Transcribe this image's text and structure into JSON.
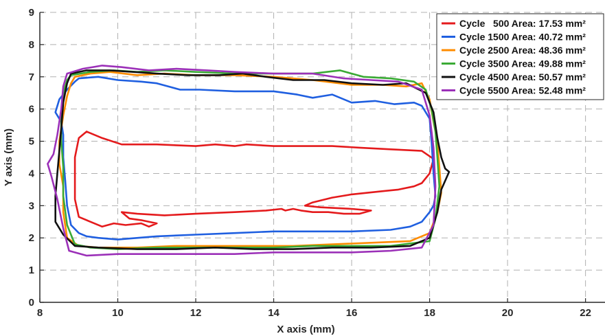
{
  "chart_data": {
    "type": "line",
    "xlabel": "X axis (mm)",
    "ylabel": "Y axis (mm)",
    "xlim": [
      8,
      22.5
    ],
    "ylim": [
      0,
      9
    ],
    "xticks": [
      8,
      10,
      12,
      14,
      16,
      18,
      20,
      22
    ],
    "yticks": [
      0,
      1,
      2,
      3,
      4,
      5,
      6,
      7,
      8,
      9
    ],
    "grid": true,
    "legend_position": "top-right",
    "series": [
      {
        "name": "Cycle   500 Area: 17.53 mm²",
        "color": "#e41a1c",
        "x": [
          9.2,
          9.6,
          10.1,
          11.0,
          12.0,
          12.5,
          13.0,
          13.3,
          14.0,
          14.8,
          15.5,
          16.2,
          17.0,
          17.8,
          18.1,
          18.0,
          17.8,
          17.6,
          17.2,
          16.8,
          16.4,
          16.0,
          15.5,
          15.0,
          14.8,
          15.2,
          16.0,
          16.5,
          16.2,
          15.8,
          15.4,
          15.0,
          14.7,
          14.5,
          14.3,
          14.2,
          13.8,
          13.0,
          12.0,
          11.2,
          10.5,
          10.1,
          10.3,
          10.6,
          11.0,
          10.8,
          10.6,
          10.2,
          9.9,
          9.6,
          9.3,
          9.0,
          8.9,
          8.9,
          9.0,
          9.2
        ],
        "y": [
          5.3,
          5.1,
          4.9,
          4.9,
          4.85,
          4.9,
          4.85,
          4.9,
          4.85,
          4.85,
          4.85,
          4.8,
          4.75,
          4.7,
          4.45,
          4.0,
          3.7,
          3.6,
          3.5,
          3.45,
          3.4,
          3.35,
          3.25,
          3.1,
          3.0,
          2.95,
          2.9,
          2.85,
          2.75,
          2.75,
          2.8,
          2.8,
          2.85,
          2.9,
          2.85,
          2.9,
          2.85,
          2.8,
          2.75,
          2.7,
          2.75,
          2.8,
          2.6,
          2.55,
          2.45,
          2.35,
          2.45,
          2.4,
          2.45,
          2.35,
          2.5,
          2.65,
          3.2,
          4.5,
          5.1,
          5.3
        ]
      },
      {
        "name": "Cycle 1500 Area: 40.72 mm²",
        "color": "#1f5fe0",
        "x": [
          9.0,
          9.5,
          10.0,
          10.6,
          11.0,
          11.6,
          12.1,
          13.0,
          14.0,
          14.6,
          15.0,
          15.5,
          16.0,
          16.6,
          17.1,
          17.6,
          17.8,
          18.0,
          18.05,
          18.1,
          18.15,
          18.1,
          18.0,
          17.8,
          17.5,
          17.0,
          16.0,
          15.0,
          14.0,
          13.0,
          12.0,
          11.0,
          10.0,
          9.5,
          9.2,
          9.0,
          8.8,
          8.7,
          8.65,
          8.6,
          8.6,
          8.55,
          8.4,
          8.5,
          8.7,
          8.9,
          9.0
        ],
        "y": [
          6.95,
          7.0,
          6.9,
          6.85,
          6.8,
          6.6,
          6.6,
          6.55,
          6.55,
          6.45,
          6.35,
          6.45,
          6.2,
          6.25,
          6.15,
          6.2,
          6.1,
          5.7,
          5.0,
          4.0,
          3.3,
          3.0,
          2.8,
          2.5,
          2.35,
          2.25,
          2.2,
          2.2,
          2.2,
          2.15,
          2.1,
          2.05,
          1.95,
          2.0,
          2.05,
          2.15,
          2.4,
          3.0,
          3.8,
          4.5,
          5.2,
          5.6,
          5.9,
          6.3,
          6.6,
          6.85,
          6.95
        ]
      },
      {
        "name": "Cycle 2500 Area: 48.36 mm²",
        "color": "#ff8c00",
        "x": [
          8.9,
          9.3,
          9.8,
          10.5,
          11.2,
          12.0,
          13.0,
          14.0,
          15.0,
          16.0,
          16.8,
          17.4,
          17.8,
          18.0,
          18.1,
          18.2,
          18.25,
          18.3,
          18.2,
          18.0,
          17.5,
          16.5,
          15.5,
          14.5,
          13.5,
          12.5,
          11.5,
          10.5,
          9.5,
          9.0,
          8.7,
          8.6,
          8.6,
          8.5,
          8.5,
          8.6,
          8.7,
          8.8,
          8.9
        ],
        "y": [
          7.0,
          7.1,
          7.15,
          7.05,
          7.1,
          7.05,
          7.05,
          7.0,
          6.9,
          6.75,
          6.75,
          6.7,
          6.8,
          6.3,
          5.6,
          5.0,
          4.2,
          3.4,
          2.8,
          2.15,
          1.9,
          1.85,
          1.8,
          1.75,
          1.75,
          1.75,
          1.75,
          1.7,
          1.7,
          1.75,
          2.0,
          2.8,
          3.6,
          4.3,
          5.0,
          5.8,
          6.4,
          6.8,
          7.0
        ]
      },
      {
        "name": "Cycle 3500 Area: 49.88 mm²",
        "color": "#3aaa35",
        "x": [
          8.8,
          9.3,
          9.9,
          10.5,
          11.2,
          12.0,
          13.0,
          14.0,
          15.0,
          15.7,
          16.3,
          17.0,
          17.6,
          17.9,
          18.05,
          18.15,
          18.2,
          18.25,
          18.15,
          18.0,
          17.0,
          16.0,
          15.0,
          14.0,
          13.0,
          12.0,
          11.0,
          10.0,
          9.3,
          8.9,
          8.7,
          8.6,
          8.6,
          8.55,
          8.55,
          8.6,
          8.7,
          8.8
        ],
        "y": [
          7.05,
          7.15,
          7.2,
          7.15,
          7.2,
          7.15,
          7.1,
          7.1,
          7.1,
          7.2,
          7.0,
          6.95,
          6.85,
          6.6,
          6.0,
          5.3,
          4.5,
          3.6,
          2.6,
          1.9,
          1.75,
          1.75,
          1.75,
          1.7,
          1.7,
          1.7,
          1.7,
          1.65,
          1.7,
          1.8,
          2.4,
          3.3,
          4.2,
          5.0,
          5.8,
          6.5,
          6.9,
          7.05
        ]
      },
      {
        "name": "Cycle 4500 Area: 50.57 mm²",
        "color": "#111111",
        "x": [
          8.8,
          9.2,
          9.8,
          10.4,
          11.0,
          11.8,
          12.6,
          13.2,
          13.8,
          14.5,
          15.3,
          16.0,
          16.8,
          17.4,
          17.9,
          18.1,
          18.2,
          18.3,
          18.4,
          18.5,
          18.3,
          18.2,
          18.0,
          17.5,
          16.5,
          15.5,
          14.5,
          13.5,
          12.5,
          11.5,
          10.5,
          9.5,
          8.9,
          8.6,
          8.4,
          8.4,
          8.45,
          8.5,
          8.55,
          8.6,
          8.7,
          8.8
        ],
        "y": [
          7.1,
          7.2,
          7.2,
          7.15,
          7.1,
          7.05,
          7.05,
          7.1,
          7.0,
          6.9,
          6.9,
          6.8,
          6.75,
          6.8,
          6.5,
          5.9,
          5.1,
          4.5,
          4.15,
          4.05,
          3.5,
          2.8,
          2.0,
          1.75,
          1.7,
          1.7,
          1.65,
          1.65,
          1.7,
          1.65,
          1.65,
          1.7,
          1.75,
          2.1,
          2.5,
          3.3,
          4.0,
          4.7,
          5.4,
          6.2,
          6.8,
          7.1
        ]
      },
      {
        "name": "Cycle 5500 Area: 52.48 mm²",
        "color": "#9b30b8",
        "x": [
          8.7,
          9.1,
          9.6,
          10.1,
          10.8,
          11.5,
          12.3,
          13.0,
          14.0,
          15.0,
          15.8,
          16.5,
          17.2,
          17.8,
          18.0,
          18.1,
          18.15,
          18.1,
          17.8,
          17.0,
          16.0,
          15.0,
          14.0,
          13.0,
          12.0,
          11.0,
          10.0,
          9.2,
          8.75,
          8.6,
          8.45,
          8.3,
          8.2,
          8.35,
          8.45,
          8.55,
          8.6,
          8.7
        ],
        "y": [
          7.1,
          7.25,
          7.35,
          7.3,
          7.2,
          7.25,
          7.2,
          7.15,
          7.1,
          7.1,
          6.95,
          6.9,
          6.85,
          6.6,
          5.8,
          4.8,
          3.6,
          2.4,
          1.7,
          1.6,
          1.55,
          1.55,
          1.55,
          1.5,
          1.5,
          1.5,
          1.5,
          1.45,
          1.6,
          2.3,
          3.2,
          3.9,
          4.3,
          4.6,
          5.2,
          6.0,
          6.7,
          7.1
        ]
      }
    ]
  }
}
